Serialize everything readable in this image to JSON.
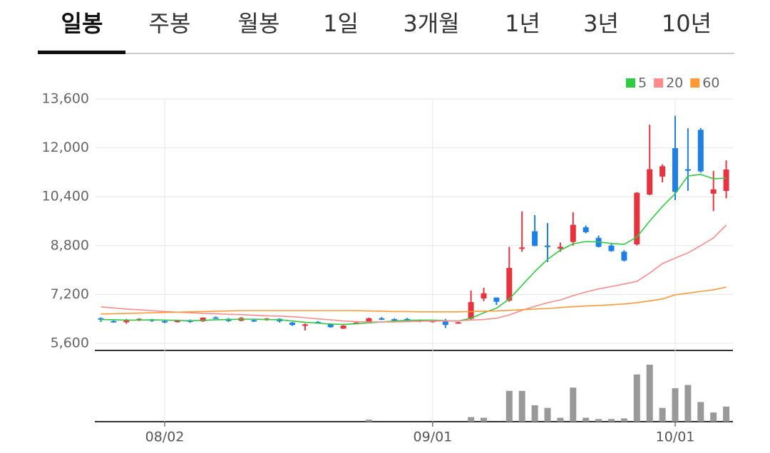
{
  "tabs": [
    "일봉",
    "주봉",
    "월봉",
    "1일",
    "3개월",
    "1년",
    "3년",
    "10년"
  ],
  "chart_data": {
    "type": "candlestick",
    "categories": [
      null,
      null,
      null,
      null,
      null,
      "08/02",
      null,
      null,
      null,
      null,
      null,
      null,
      null,
      null,
      null,
      null,
      null,
      null,
      null,
      null,
      null,
      null,
      null,
      null,
      null,
      null,
      "09/01",
      null,
      null,
      null,
      null,
      null,
      null,
      null,
      null,
      null,
      null,
      null,
      null,
      null,
      null,
      null,
      null,
      null,
      null,
      "10/01",
      null,
      null,
      null,
      null
    ],
    "open": [
      6420,
      6330,
      6290,
      6360,
      6380,
      6330,
      6300,
      6350,
      6320,
      6450,
      6400,
      6340,
      6360,
      6360,
      6400,
      6280,
      6180,
      6300,
      6230,
      6080,
      6250,
      6300,
      6420,
      6390,
      6400,
      6320,
      6300,
      6350,
      6250,
      6400,
      7070,
      7100,
      7000,
      8700,
      9270,
      8800,
      8700,
      8920,
      9400,
      9050,
      8800,
      8600,
      8840,
      10470,
      11060,
      11990,
      11300,
      12590,
      10500,
      10590
    ],
    "high": [
      6450,
      6360,
      6400,
      6420,
      6400,
      6360,
      6360,
      6380,
      6450,
      6480,
      6430,
      6460,
      6400,
      6430,
      6420,
      6300,
      6250,
      6330,
      6250,
      6200,
      6290,
      6440,
      6460,
      6420,
      6430,
      6380,
      6360,
      6400,
      6300,
      7330,
      7420,
      7100,
      8760,
      9920,
      9800,
      9540,
      8900,
      9890,
      9460,
      9130,
      8850,
      8650,
      10550,
      12760,
      11460,
      13050,
      12640,
      12650,
      11250,
      11590
    ],
    "low": [
      6300,
      6280,
      6240,
      6330,
      6300,
      6260,
      6280,
      6270,
      6300,
      6400,
      6300,
      6320,
      6300,
      6340,
      6280,
      6170,
      6020,
      6240,
      6110,
      6070,
      6230,
      6290,
      6360,
      6300,
      6300,
      6290,
      6280,
      6100,
      6240,
      6350,
      6980,
      6860,
      6960,
      8600,
      8780,
      8260,
      8600,
      8800,
      9200,
      8740,
      8600,
      8280,
      8800,
      10450,
      10870,
      10290,
      10590,
      11190,
      9930,
      10350
    ],
    "close": [
      6380,
      6300,
      6370,
      6400,
      6360,
      6300,
      6340,
      6300,
      6440,
      6430,
      6330,
      6430,
      6320,
      6410,
      6320,
      6200,
      6220,
      6260,
      6130,
      6180,
      6280,
      6420,
      6380,
      6340,
      6330,
      6360,
      6340,
      6200,
      6290,
      6950,
      7240,
      6960,
      8070,
      8740,
      8790,
      8770,
      8760,
      9480,
      9240,
      8760,
      8620,
      8310,
      10530,
      11300,
      11400,
      10560,
      11250,
      11230,
      10640,
      11290
    ],
    "up_color": "#e8333e",
    "down_color": "#1e80e6",
    "series": [
      {
        "name": "5",
        "color": "#2ecc40",
        "values": [
          6380,
          6370,
          6360,
          6360,
          6370,
          6360,
          6350,
          6340,
          6350,
          6370,
          6380,
          6390,
          6390,
          6380,
          6370,
          6330,
          6290,
          6260,
          6230,
          6220,
          6240,
          6270,
          6300,
          6330,
          6350,
          6360,
          6360,
          6340,
          6330,
          6420,
          6600,
          6750,
          7050,
          7500,
          7950,
          8350,
          8650,
          8860,
          8930,
          8920,
          8870,
          8840,
          9080,
          9600,
          10080,
          10500,
          11080,
          11130,
          10990,
          11010
        ]
      },
      {
        "name": "20",
        "color": "#ff8a8a",
        "values": [
          6790,
          6760,
          6720,
          6700,
          6670,
          6640,
          6620,
          6600,
          6580,
          6570,
          6550,
          6540,
          6520,
          6500,
          6490,
          6470,
          6440,
          6400,
          6370,
          6330,
          6310,
          6300,
          6300,
          6300,
          6310,
          6320,
          6330,
          6330,
          6340,
          6360,
          6380,
          6420,
          6530,
          6680,
          6810,
          6930,
          7020,
          7160,
          7280,
          7380,
          7460,
          7540,
          7630,
          7900,
          8210,
          8390,
          8560,
          8800,
          9050,
          9470
        ]
      },
      {
        "name": "60",
        "color": "#ff9933",
        "values": [
          6560,
          6570,
          6580,
          6590,
          6600,
          6610,
          6620,
          6630,
          6640,
          6650,
          6660,
          6670,
          6670,
          6670,
          6670,
          6670,
          6670,
          6670,
          6670,
          6670,
          6670,
          6660,
          6650,
          6640,
          6640,
          6630,
          6630,
          6630,
          6630,
          6640,
          6650,
          6660,
          6680,
          6700,
          6720,
          6740,
          6770,
          6800,
          6820,
          6840,
          6860,
          6890,
          6930,
          6990,
          7050,
          7190,
          7240,
          7300,
          7350,
          7440
        ]
      }
    ],
    "ylim": [
      5600,
      13600
    ],
    "yticks": [
      {
        "value": 5600,
        "label": "5,600"
      },
      {
        "value": 7200,
        "label": "7,200"
      },
      {
        "value": 8800,
        "label": "8,800"
      },
      {
        "value": 10400,
        "label": "10,400"
      },
      {
        "value": 12000,
        "label": "12,000"
      },
      {
        "value": 13600,
        "label": "13,600"
      }
    ],
    "grid": true,
    "volume": {
      "color": "#999999",
      "ylim": [
        0,
        100
      ],
      "values": [
        0,
        0,
        0,
        0,
        0,
        0,
        0,
        0,
        0,
        0,
        0,
        0,
        0,
        0,
        0,
        0,
        0,
        0,
        0,
        0,
        0,
        3,
        0,
        0,
        0,
        0,
        0,
        0,
        0,
        7,
        6,
        0,
        47,
        47,
        25,
        21,
        6,
        52,
        6,
        4,
        4,
        5,
        72,
        87,
        21,
        51,
        56,
        30,
        14,
        23
      ]
    }
  }
}
